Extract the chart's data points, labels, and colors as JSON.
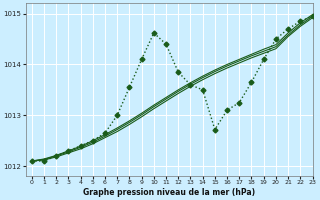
{
  "background_color": "#cceeff",
  "grid_color": "#ffffff",
  "line_color_dark": "#1a5c1a",
  "line_color_mid": "#2d7a2d",
  "xlabel": "Graphe pression niveau de la mer (hPa)",
  "ylim": [
    1011.8,
    1015.2
  ],
  "xlim": [
    -0.5,
    23
  ],
  "yticks": [
    1012,
    1013,
    1014,
    1015
  ],
  "xticks": [
    0,
    1,
    2,
    3,
    4,
    5,
    6,
    7,
    8,
    9,
    10,
    11,
    12,
    13,
    14,
    15,
    16,
    17,
    18,
    19,
    20,
    21,
    22,
    23
  ],
  "series_straight": [
    [
      1012.1,
      1012.12,
      1012.18,
      1012.26,
      1012.34,
      1012.44,
      1012.56,
      1012.68,
      1012.82,
      1012.97,
      1013.13,
      1013.28,
      1013.43,
      1013.57,
      1013.7,
      1013.82,
      1013.93,
      1014.03,
      1014.13,
      1014.22,
      1014.31,
      1014.55,
      1014.75,
      1014.92
    ],
    [
      1012.1,
      1012.13,
      1012.2,
      1012.28,
      1012.37,
      1012.47,
      1012.59,
      1012.72,
      1012.86,
      1013.01,
      1013.17,
      1013.32,
      1013.47,
      1013.61,
      1013.74,
      1013.86,
      1013.97,
      1014.07,
      1014.17,
      1014.26,
      1014.35,
      1014.58,
      1014.78,
      1014.95
    ],
    [
      1012.1,
      1012.14,
      1012.21,
      1012.3,
      1012.39,
      1012.5,
      1012.62,
      1012.75,
      1012.89,
      1013.04,
      1013.2,
      1013.35,
      1013.5,
      1013.64,
      1013.77,
      1013.89,
      1014.0,
      1014.1,
      1014.2,
      1014.3,
      1014.39,
      1014.62,
      1014.82,
      1014.98
    ]
  ],
  "series_peaked": [
    1012.1,
    1012.1,
    1012.2,
    1012.3,
    1012.4,
    1012.5,
    1012.65,
    1013.0,
    1013.55,
    1014.1,
    1014.62,
    1014.4,
    1013.85,
    1013.6,
    1013.5,
    1012.72,
    1013.1,
    1013.25,
    1013.65,
    1014.1,
    1014.5,
    1014.7,
    1014.85,
    1014.95
  ],
  "marker": "D",
  "marker_size": 2.5,
  "linewidth_thin": 0.8,
  "linewidth_thick": 1.0
}
